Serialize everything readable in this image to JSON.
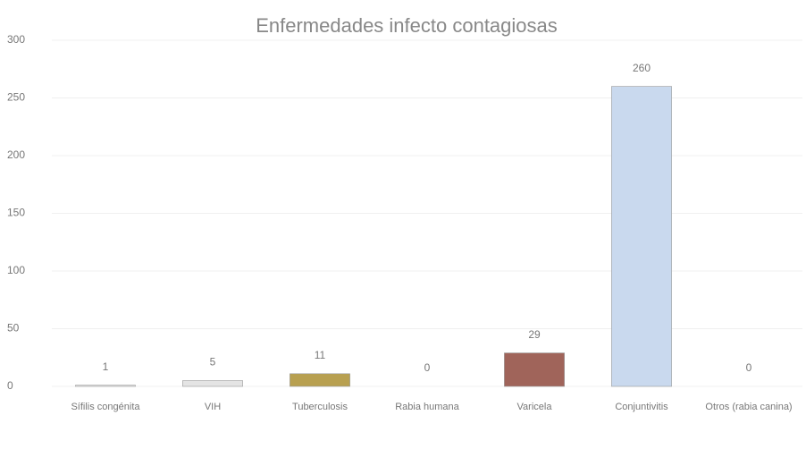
{
  "chart_data": {
    "type": "bar",
    "title": "Enfermedades infecto contagiosas",
    "categories": [
      "Sífilis congénita",
      "VIH",
      "Tuberculosis",
      "Rabia humana",
      "Varicela",
      "Conjuntivitis",
      "Otros (rabia canina)"
    ],
    "values": [
      1,
      5,
      11,
      0,
      29,
      260,
      0
    ],
    "colors": [
      "#e4e4e4",
      "#e4e4e4",
      "#b8a050",
      "#e4e4e4",
      "#a0645a",
      "#c9d9ee",
      "#e4e4e4"
    ],
    "ylim": [
      0,
      300
    ],
    "yticks": [
      0,
      50,
      100,
      150,
      200,
      250,
      300
    ],
    "grid": true
  }
}
